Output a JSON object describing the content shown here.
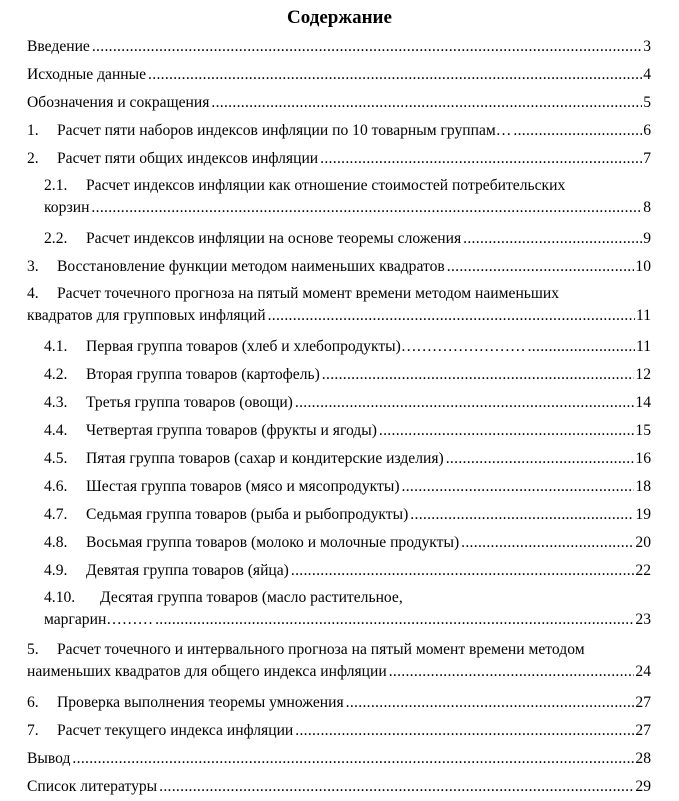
{
  "title": "Содержание",
  "entries": [
    {
      "num": "",
      "title": "Введение",
      "page": "3",
      "level": 1
    },
    {
      "num": "",
      "title": "Исходные данные",
      "page": "4",
      "level": 1
    },
    {
      "num": "",
      "title": "Обозначения и сокращения",
      "page": "5",
      "level": 1
    },
    {
      "num": "1.",
      "title": "Расчет пяти наборов индексов инфляции по 10 товарным группам…",
      "page": "6",
      "level": 1
    },
    {
      "num": "2.",
      "title": "Расчет пяти общих индексов инфляции",
      "page": "7",
      "level": 1
    },
    {
      "num": "2.1.",
      "title": "Расчет индексов инфляции как отношение стоимостей потребительских",
      "title_cont": "корзин",
      "page": "8",
      "level": 2
    },
    {
      "num": "2.2.",
      "title": "Расчет индексов инфляции на основе теоремы сложения",
      "page": ".9",
      "level": 2
    },
    {
      "num": "3.",
      "title": "Восстановление функции методом наименьших квадратов",
      "page": "10",
      "level": 1
    },
    {
      "num": "4.",
      "title": "Расчет точечного прогноза на пятый момент времени методом наименьших",
      "title_cont": "квадратов для групповых инфляций",
      "page": "11",
      "level": 1
    },
    {
      "num": "4.1.",
      "title": "Первая группа товаров (хлеб и хлебопродукты)……………………",
      "page": "11",
      "level": 2
    },
    {
      "num": "4.2.",
      "title": "Вторая группа товаров (картофель)",
      "page": "12",
      "level": 2
    },
    {
      "num": "4.3.",
      "title": "Третья группа товаров (овощи)",
      "page": "14",
      "level": 2
    },
    {
      "num": "4.4.",
      "title": "Четвертая группа товаров (фрукты и ягоды)",
      "page": "15",
      "level": 2
    },
    {
      "num": "4.5.",
      "title": "Пятая группа товаров (сахар и кондитерские изделия)",
      "page": "16",
      "level": 2
    },
    {
      "num": "4.6.",
      "title": "Шестая группа товаров (мясо и мясопродукты)",
      "page": "18",
      "level": 2
    },
    {
      "num": "4.7.",
      "title": "Седьмая группа товаров (рыба и рыбопродукты)",
      "page": "19",
      "level": 2
    },
    {
      "num": "4.8.",
      "title": "Восьмая группа товаров (молоко и молочные продукты)",
      "page": "20",
      "level": 2
    },
    {
      "num": "4.9.",
      "title": "Девятая группа товаров (яйца)",
      "page": "22",
      "level": 2
    },
    {
      "num": "4.10.",
      "title": "Десятая группа товаров (масло растительное,",
      "title_cont": "маргарин………",
      "page": "23",
      "level": 2
    },
    {
      "num": "5.",
      "title": "Расчет точечного и интервального прогноза на пятый момент времени методом",
      "title_cont": "наименьших квадратов для общего индекса инфляции",
      "page": "24",
      "level": 1
    },
    {
      "num": "6.",
      "title": "Проверка выполнения теоремы умножения",
      "page": "27",
      "level": 1
    },
    {
      "num": "7.",
      "title": "Расчет текущего индекса инфляции",
      "page": "27",
      "level": 1
    },
    {
      "num": "",
      "title": "Вывод",
      "page": "28",
      "level": 1
    },
    {
      "num": "",
      "title": "Список литературы",
      "page": "29",
      "level": 1
    }
  ]
}
